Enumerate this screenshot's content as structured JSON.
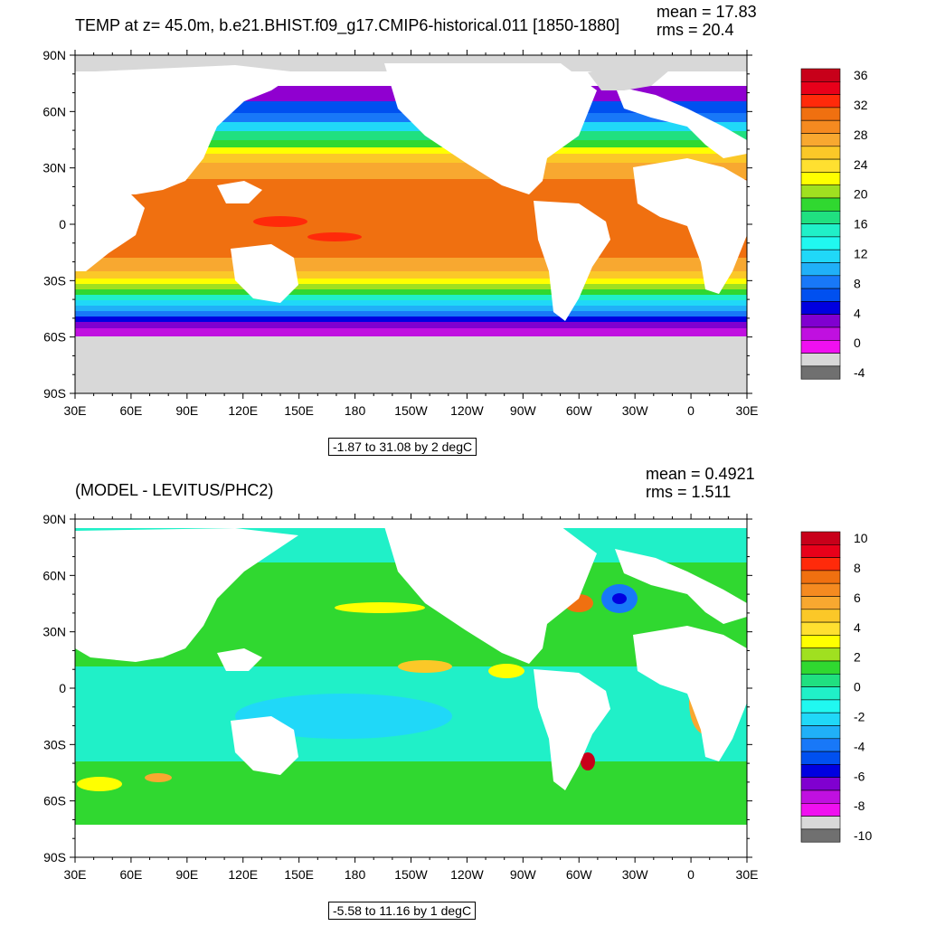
{
  "top": {
    "title": "TEMP at z=  45.0m, b.e21.BHIST.f09_g17.CMIP6-historical.011 [1850-1880]",
    "mean_label": "mean = 17.83",
    "rms_label": "rms = 20.4",
    "range_label": "-1.87 to 31.08 by 2 degC",
    "colorbar": {
      "labels": [
        "36",
        "32",
        "28",
        "24",
        "20",
        "16",
        "12",
        "8",
        "4",
        "0",
        "-4"
      ],
      "colors": [
        "#c8001a",
        "#e8001a",
        "#ff2a0a",
        "#f07010",
        "#f58a20",
        "#f8a830",
        "#fbc828",
        "#ffe030",
        "#ffff00",
        "#a0e020",
        "#30d830",
        "#20e080",
        "#20f0c8",
        "#20f8f0",
        "#20d8f8",
        "#20b0f8",
        "#1878f8",
        "#0050f0",
        "#0000e0",
        "#8000d0",
        "#c010e0",
        "#f010f0",
        "#d8d8d8",
        "#707070"
      ]
    }
  },
  "bottom": {
    "title": "(MODEL - LEVITUS/PHC2)",
    "mean_label": "mean = 0.4921",
    "rms_label": "rms = 1.511",
    "range_label": "-5.58 to 11.16 by 1 degC",
    "colorbar": {
      "labels": [
        "10",
        "8",
        "6",
        "4",
        "2",
        "0",
        "-2",
        "-4",
        "-6",
        "-8",
        "-10"
      ],
      "colors": [
        "#c8001a",
        "#e8001a",
        "#ff2a0a",
        "#f07010",
        "#f58a20",
        "#f8a830",
        "#fbc828",
        "#ffe030",
        "#ffff00",
        "#a0e020",
        "#30d830",
        "#20e080",
        "#20f0c8",
        "#20f8f0",
        "#20d8f8",
        "#20b0f8",
        "#1878f8",
        "#0050f0",
        "#0000e0",
        "#8000d0",
        "#c010e0",
        "#f010f0",
        "#d8d8d8",
        "#707070"
      ]
    }
  },
  "axes": {
    "lat_labels": [
      "90N",
      "60N",
      "30N",
      "0",
      "30S",
      "60S",
      "90S"
    ],
    "lon_labels": [
      "30E",
      "60E",
      "90E",
      "120E",
      "150E",
      "180",
      "150W",
      "120W",
      "90W",
      "60W",
      "30W",
      "0",
      "30E"
    ]
  }
}
